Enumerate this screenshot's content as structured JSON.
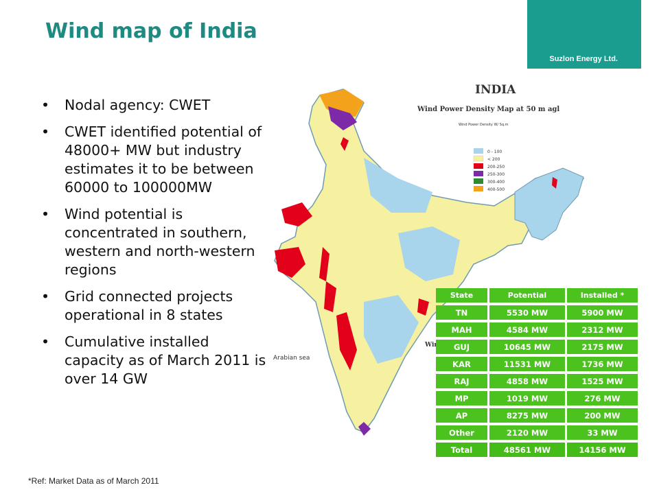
{
  "title": "Wind map of India",
  "brand": "Suzlon Energy Ltd.",
  "bullets": [
    "Nodal agency: CWET",
    "CWET identified potential of 48000+ MW but industry estimates it to be between 60000 to 100000MW",
    "Wind potential is concentrated in southern, western and north-western regions",
    "Grid connected projects operational in 8 states",
    "Cumulative installed capacity as of March 2011 is over 14 GW"
  ],
  "map": {
    "heading": "INDIA",
    "subheading": "Wind Power Density  Map at 50 m agl",
    "units_label": "Wind Power Density W/ Sq.m",
    "legend": [
      "0 - 100",
      "< 200",
      "200-250",
      "250-300",
      "300-400",
      "400-500"
    ],
    "legend_colors": [
      "#a8d4ec",
      "#f6f1a0",
      "#e2001a",
      "#7d2aa8",
      "#2e8b2e",
      "#f3a21b"
    ],
    "sea_label": "Arabian sea",
    "wind_label": "Wind I"
  },
  "table": {
    "headers": [
      "State",
      "Potential",
      "Installed *"
    ],
    "rows": [
      [
        "TN",
        "5530 MW",
        "5900 MW"
      ],
      [
        "MAH",
        "4584 MW",
        "2312 MW"
      ],
      [
        "GUJ",
        "10645 MW",
        "2175 MW"
      ],
      [
        "KAR",
        "11531 MW",
        "1736 MW"
      ],
      [
        "RAJ",
        "4858 MW",
        "1525 MW"
      ],
      [
        "MP",
        "1019 MW",
        "276 MW"
      ],
      [
        "AP",
        "8275 MW",
        "200 MW"
      ],
      [
        "Other",
        "2120 MW",
        "33 MW"
      ]
    ],
    "total": [
      "Total",
      "48561 MW",
      "14156 MW"
    ]
  },
  "reference": "*Ref: Market Data as of March 2011",
  "colors": {
    "title": "#1f8a82",
    "brand_bg": "#1a9c8f",
    "table_green": "#4cc21f"
  }
}
